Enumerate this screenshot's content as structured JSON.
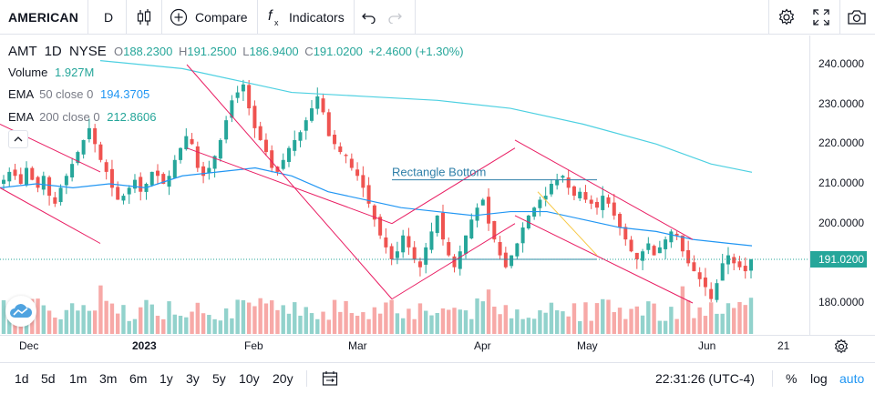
{
  "toolbar": {
    "symbol": "AMERICAN ",
    "interval": "D",
    "compare_label": "Compare",
    "indicators_label": "Indicators",
    "icons": [
      "candles-icon",
      "plus-circle-icon",
      "fx-icon",
      "undo-icon",
      "redo-icon",
      "gear-icon",
      "fullscreen-icon",
      "camera-icon"
    ]
  },
  "legend": {
    "ticker": "AMT",
    "interval": "1D",
    "exchange": "NYSE",
    "open_label": "O",
    "open": "188.2300",
    "high_label": "H",
    "high": "191.2500",
    "low_label": "L",
    "low": "186.9400",
    "close_label": "C",
    "close": "191.0200",
    "change": "+2.4600 (+1.30%)",
    "volume_label": "Volume",
    "volume": "1.927M",
    "ema50_label": "EMA",
    "ema50_params": "50 close 0",
    "ema50_value": "194.3705",
    "ema200_label": "EMA",
    "ema200_params": "200 close 0",
    "ema200_value": "212.8606"
  },
  "price_axis": {
    "labels": [
      "240.0000",
      "230.0000",
      "220.0000",
      "210.0000",
      "200.0000",
      "180.0000"
    ],
    "current_price": "191.0200"
  },
  "time_axis": {
    "labels": [
      "Dec",
      "2023",
      "Feb",
      "Mar",
      "Apr",
      "May",
      "Jun",
      "21"
    ]
  },
  "annotation": {
    "text": "Rectangle Bottom"
  },
  "colors": {
    "up": "#26a69a",
    "down": "#ef5350",
    "ema50": "#2196f3",
    "ema200": "#4dd0e1",
    "channel": "#e91e63",
    "rect": "#2f7fa8"
  },
  "bottom": {
    "ranges": [
      "1d",
      "5d",
      "1m",
      "3m",
      "6m",
      "1y",
      "3y",
      "5y",
      "10y",
      "20y"
    ],
    "time": "22:31:26 (UTC-4)",
    "percent_label": "%",
    "log_label": "log",
    "auto_label": "auto"
  },
  "chart_data": {
    "type": "candlestick",
    "ylim": [
      172,
      246
    ],
    "close_series": [
      211,
      213,
      212,
      210,
      214,
      211,
      209,
      212,
      207,
      205,
      209,
      212,
      215,
      218,
      221,
      224,
      220,
      216,
      213,
      209,
      206,
      207,
      209,
      211,
      208,
      210,
      213,
      212,
      210,
      212,
      216,
      219,
      222,
      220,
      214,
      212,
      214,
      217,
      221,
      226,
      231,
      233,
      235,
      229,
      224,
      221,
      218,
      214,
      213,
      216,
      219,
      221,
      223,
      226,
      229,
      232,
      228,
      222,
      220,
      218,
      217,
      214,
      212,
      209,
      205,
      201,
      197,
      194,
      191,
      193,
      197,
      194,
      191,
      189,
      194,
      198,
      202,
      196,
      192,
      189,
      193,
      197,
      201,
      204,
      206,
      200,
      196,
      192,
      189,
      192,
      195,
      199,
      202,
      204,
      206,
      207,
      210,
      211,
      212,
      209,
      207,
      208,
      206,
      205,
      204,
      207,
      205,
      202,
      199,
      196,
      193,
      191,
      193,
      195,
      192,
      194,
      196,
      198,
      197,
      193,
      190,
      188,
      186,
      184,
      181,
      185,
      190,
      192,
      190,
      189,
      188,
      191
    ],
    "ema50_points": [
      [
        0,
        209
      ],
      [
        40,
        210
      ],
      [
        80,
        209
      ],
      [
        120,
        210
      ],
      [
        160,
        209
      ],
      [
        200,
        212
      ],
      [
        240,
        213
      ],
      [
        280,
        214
      ],
      [
        320,
        212
      ],
      [
        360,
        208
      ],
      [
        400,
        206
      ],
      [
        440,
        204
      ],
      [
        480,
        203
      ],
      [
        520,
        202
      ],
      [
        560,
        203
      ],
      [
        600,
        203
      ],
      [
        640,
        201
      ],
      [
        680,
        199
      ],
      [
        720,
        198
      ],
      [
        760,
        196
      ],
      [
        800,
        195
      ],
      [
        825,
        194.4
      ]
    ],
    "ema200_points": [
      [
        110,
        241
      ],
      [
        200,
        239
      ],
      [
        260,
        236
      ],
      [
        320,
        233
      ],
      [
        400,
        232
      ],
      [
        480,
        231
      ],
      [
        560,
        229
      ],
      [
        640,
        225
      ],
      [
        720,
        220
      ],
      [
        780,
        215
      ],
      [
        825,
        212.9
      ]
    ],
    "rectangle": {
      "x": [
        430,
        655
      ],
      "top": 211,
      "bottom": 191
    },
    "channels": [
      [
        [
          205,
          240
        ],
        [
          430,
          181
        ]
      ],
      [
        [
          205,
          219
        ],
        [
          430,
          200
        ]
      ],
      [
        [
          430,
          200
        ],
        [
          565,
          219
        ]
      ],
      [
        [
          430,
          181
        ],
        [
          565,
          200
        ]
      ],
      [
        [
          565,
          221
        ],
        [
          760,
          196
        ]
      ],
      [
        [
          565,
          202
        ],
        [
          760,
          180
        ]
      ],
      [
        [
          0,
          225
        ],
        [
          110,
          213
        ]
      ],
      [
        [
          0,
          209
        ],
        [
          110,
          195
        ]
      ]
    ]
  }
}
